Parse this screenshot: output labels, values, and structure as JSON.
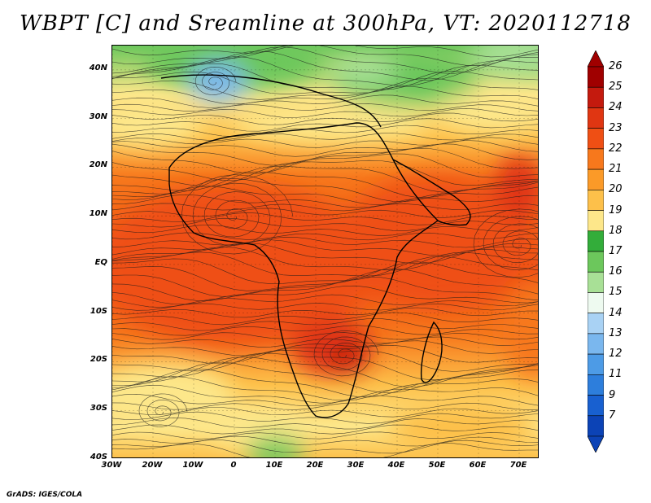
{
  "title": "WBPT [C] and Sreamline at 300hPa, VT: 2020112718",
  "credit": "GrADS: IGES/COLA",
  "axes": {
    "lat_ticks": [
      {
        "label": "40N",
        "value": 40
      },
      {
        "label": "30N",
        "value": 30
      },
      {
        "label": "20N",
        "value": 20
      },
      {
        "label": "10N",
        "value": 10
      },
      {
        "label": "EQ",
        "value": 0
      },
      {
        "label": "10S",
        "value": -10
      },
      {
        "label": "20S",
        "value": -20
      },
      {
        "label": "30S",
        "value": -30
      },
      {
        "label": "40S",
        "value": -40
      }
    ],
    "lon_ticks": [
      {
        "label": "30W",
        "value": -30
      },
      {
        "label": "20W",
        "value": -20
      },
      {
        "label": "10W",
        "value": -10
      },
      {
        "label": "0",
        "value": 0
      },
      {
        "label": "10E",
        "value": 10
      },
      {
        "label": "20E",
        "value": 20
      },
      {
        "label": "30E",
        "value": 30
      },
      {
        "label": "40E",
        "value": 40
      },
      {
        "label": "50E",
        "value": 50
      },
      {
        "label": "60E",
        "value": 60
      },
      {
        "label": "70E",
        "value": 70
      }
    ],
    "lon_range": [
      -30,
      75
    ],
    "lat_range": [
      -40,
      45
    ]
  },
  "colorbar": {
    "labels": [
      "26",
      "25",
      "24",
      "23",
      "22",
      "21",
      "20",
      "19",
      "18",
      "17",
      "16",
      "15",
      "14",
      "13",
      "12",
      "11",
      "9",
      "7"
    ],
    "colors": [
      "#a00000",
      "#c41a0e",
      "#e03612",
      "#ef4f14",
      "#f7781c",
      "#fb9a28",
      "#fdc04a",
      "#fde78a",
      "#33ad3a",
      "#6cc75c",
      "#a8e096",
      "#eefaf0",
      "#a9d2f4",
      "#7ab7ee",
      "#4d9be6",
      "#2d7edc",
      "#1860d0",
      "#0c43b6"
    ]
  }
}
